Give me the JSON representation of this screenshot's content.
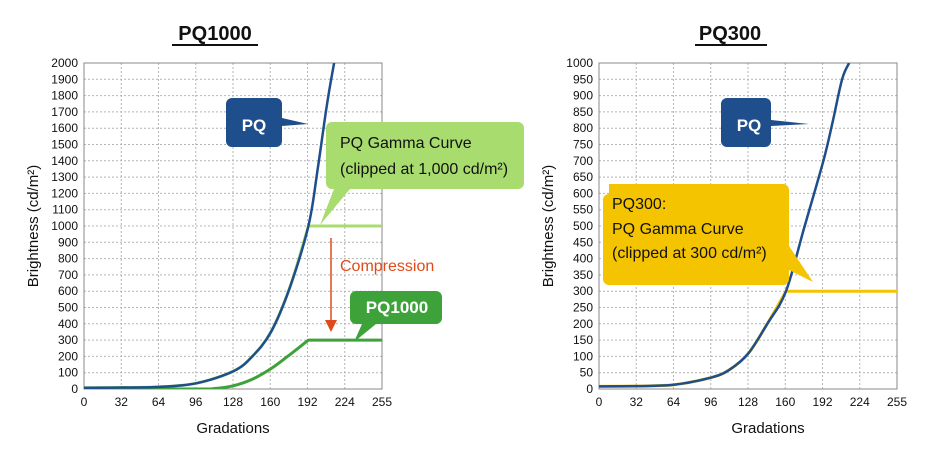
{
  "chart_data": [
    {
      "type": "line",
      "title": "PQ1000",
      "xlabel": "Gradations",
      "ylabel": "Brightness (cd/m²)",
      "xlim": [
        0,
        255
      ],
      "ylim": [
        0,
        2000
      ],
      "xticks": [
        "0",
        "32",
        "64",
        "96",
        "128",
        "160",
        "192",
        "224",
        "255"
      ],
      "yticks": [
        "0",
        "100",
        "200",
        "300",
        "400",
        "500",
        "600",
        "700",
        "800",
        "900",
        "1000",
        "1100",
        "1200",
        "1300",
        "1400",
        "1500",
        "1600",
        "1700",
        "1800",
        "1900",
        "2000"
      ],
      "grid": true,
      "series": [
        {
          "name": "PQ",
          "color": "#1f4e8c",
          "x": [
            0,
            32,
            64,
            96,
            128,
            144,
            160,
            176,
            192,
            200,
            208,
            214
          ],
          "y": [
            8,
            9,
            13,
            35,
            110,
            200,
            350,
            620,
            1000,
            1350,
            1750,
            2000
          ]
        },
        {
          "name": "PQ Gamma Curve (clipped at 1,000 cd/m²)",
          "color": "#a8dc6e",
          "x": [
            0,
            32,
            64,
            96,
            128,
            144,
            160,
            176,
            192,
            255
          ],
          "y": [
            8,
            9,
            13,
            35,
            110,
            200,
            350,
            620,
            1000,
            1000
          ]
        },
        {
          "name": "PQ1000",
          "color": "#3ea23a",
          "x": [
            0,
            96,
            112,
            128,
            144,
            160,
            176,
            192,
            255
          ],
          "y": [
            0,
            0,
            3,
            20,
            60,
            125,
            210,
            300,
            300
          ]
        }
      ],
      "annotations": [
        {
          "label": "PQ",
          "style": "box",
          "color": "#1f4e8c",
          "text_color": "#ffffff"
        },
        {
          "label_lines": [
            "PQ Gamma Curve",
            "(clipped at 1,000 cd/m²)"
          ],
          "style": "box",
          "color": "#a8dc6e",
          "text_color": "#111111"
        },
        {
          "label": "PQ1000",
          "style": "box",
          "color": "#3ea23a",
          "text_color": "#ffffff"
        },
        {
          "label": "Compression",
          "style": "arrow",
          "color": "#e04a1a"
        }
      ]
    },
    {
      "type": "line",
      "title": "PQ300",
      "xlabel": "Gradations",
      "ylabel": "Brightness (cd/m²)",
      "xlim": [
        0,
        255
      ],
      "ylim": [
        0,
        1000
      ],
      "xticks": [
        "0",
        "32",
        "64",
        "96",
        "128",
        "160",
        "192",
        "224",
        "255"
      ],
      "yticks": [
        "0",
        "50",
        "100",
        "150",
        "200",
        "250",
        "300",
        "350",
        "400",
        "450",
        "500",
        "550",
        "600",
        "650",
        "700",
        "750",
        "800",
        "850",
        "900",
        "950",
        "1000"
      ],
      "grid": true,
      "series": [
        {
          "name": "PQ",
          "color": "#1f4e8c",
          "x": [
            0,
            32,
            64,
            96,
            112,
            128,
            144,
            160,
            176,
            192,
            200,
            208,
            214
          ],
          "y": [
            8,
            9,
            13,
            35,
            60,
            110,
            200,
            300,
            500,
            700,
            820,
            950,
            1000
          ]
        },
        {
          "name": "PQ300: PQ Gamma Curve (clipped at 300 cd/m²)",
          "color": "#f5c400",
          "x": [
            0,
            32,
            64,
            96,
            112,
            128,
            144,
            160,
            255
          ],
          "y": [
            8,
            9,
            13,
            35,
            60,
            110,
            200,
            300,
            300
          ]
        }
      ],
      "annotations": [
        {
          "label": "PQ",
          "style": "box",
          "color": "#1f4e8c",
          "text_color": "#ffffff"
        },
        {
          "label_lines": [
            "PQ300:",
            "PQ Gamma Curve",
            "(clipped at 300 cd/m²)"
          ],
          "style": "box",
          "color": "#f5c400",
          "text_color": "#111111"
        }
      ]
    }
  ]
}
